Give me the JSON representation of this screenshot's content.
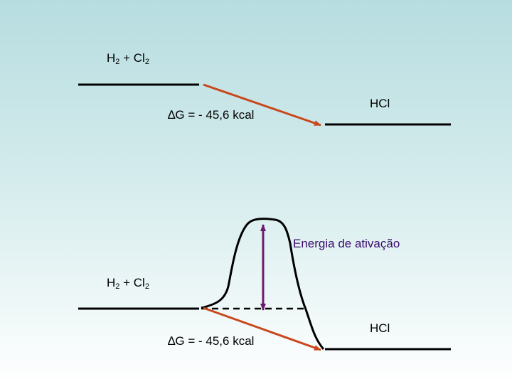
{
  "top_diagram": {
    "reactant": {
      "main1": "H",
      "sub1": "2",
      "plus": " + Cl",
      "sub2": "2"
    },
    "product": "HCl",
    "delta_g": {
      "symbol": "∆",
      "text": "G = - 45,6 kcal"
    }
  },
  "bottom_diagram": {
    "reactant": {
      "main1": "H",
      "sub1": "2",
      "plus": " + Cl",
      "sub2": "2"
    },
    "product": "HCl",
    "delta_g": {
      "symbol": "∆",
      "text": "G = - 45,6 kcal"
    },
    "activation_label": "Energia de ativação"
  },
  "colors": {
    "arrow": "#c8481c",
    "activation_arrow": "#6a1a6e",
    "level_line": "#000000"
  }
}
